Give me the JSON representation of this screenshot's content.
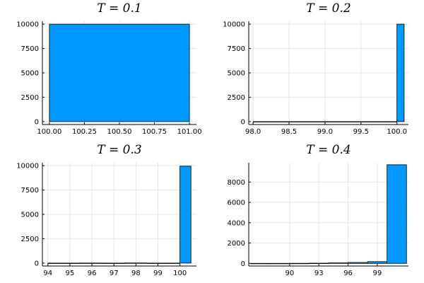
{
  "chart_data": [
    {
      "type": "bar",
      "title": "T = 0.1",
      "xlim": [
        99.95,
        101.05
      ],
      "ylim": [
        -300,
        10300
      ],
      "xticks": [
        100.0,
        100.25,
        100.5,
        100.75,
        101.0
      ],
      "xtick_labels": [
        "100.00",
        "100.25",
        "100.50",
        "100.75",
        "101.00"
      ],
      "yticks": [
        0,
        2500,
        5000,
        7500,
        10000
      ],
      "ytick_labels": [
        "0",
        "2500",
        "5000",
        "7500",
        "10000"
      ],
      "bins": [
        {
          "x0": 100.0,
          "x1": 101.0,
          "value": 10000
        }
      ],
      "color": "#0099ff",
      "grid": true
    },
    {
      "type": "bar",
      "title": "T = 0.2",
      "xlim": [
        97.94,
        100.16
      ],
      "ylim": [
        -300,
        10300
      ],
      "xticks": [
        98.0,
        98.5,
        99.0,
        99.5,
        100.0
      ],
      "xtick_labels": [
        "98.0",
        "98.5",
        "99.0",
        "99.5",
        "100.0"
      ],
      "yticks": [
        0,
        2500,
        5000,
        7500,
        10000
      ],
      "ytick_labels": [
        "0",
        "2500",
        "5000",
        "7500",
        "10000"
      ],
      "bins": [
        {
          "x0": 98.0,
          "x1": 99.9,
          "value": 0
        },
        {
          "x0": 99.9,
          "x1": 100.0,
          "value": 0
        },
        {
          "x0": 100.0,
          "x1": 100.1,
          "value": 10000
        }
      ],
      "color": "#0099ff",
      "grid": true
    },
    {
      "type": "bar",
      "title": "T = 0.3",
      "xlim": [
        93.75,
        100.75
      ],
      "ylim": [
        -300,
        10300
      ],
      "xticks": [
        94,
        95,
        96,
        97,
        98,
        99,
        100
      ],
      "xtick_labels": [
        "94",
        "95",
        "96",
        "97",
        "98",
        "99",
        "100"
      ],
      "yticks": [
        0,
        2500,
        5000,
        7500,
        10000
      ],
      "ytick_labels": [
        "0",
        "2500",
        "5000",
        "7500",
        "10000"
      ],
      "bins": [
        {
          "x0": 94.0,
          "x1": 95.5,
          "value": 0
        },
        {
          "x0": 95.5,
          "x1": 96.5,
          "value": 5
        },
        {
          "x0": 96.5,
          "x1": 97.5,
          "value": 0
        },
        {
          "x0": 97.5,
          "x1": 98.5,
          "value": 15
        },
        {
          "x0": 98.5,
          "x1": 99.5,
          "value": 0
        },
        {
          "x0": 99.5,
          "x1": 100.0,
          "value": 0
        },
        {
          "x0": 100.0,
          "x1": 100.5,
          "value": 9950
        }
      ],
      "color": "#0099ff",
      "grid": true
    },
    {
      "type": "bar",
      "title": "T = 0.4",
      "xlim": [
        85.8,
        102.2
      ],
      "ylim": [
        -260,
        9900
      ],
      "xticks": [
        90,
        93,
        96,
        99
      ],
      "xtick_labels": [
        "90",
        "93",
        "96",
        "99"
      ],
      "yticks": [
        0,
        2000,
        4000,
        6000,
        8000
      ],
      "ytick_labels": [
        "0",
        "2000",
        "4000",
        "6000",
        "8000"
      ],
      "bins": [
        {
          "x0": 86.0,
          "x1": 88.0,
          "value": 0
        },
        {
          "x0": 88.0,
          "x1": 90.0,
          "value": 2
        },
        {
          "x0": 90.0,
          "x1": 92.0,
          "value": 5
        },
        {
          "x0": 92.0,
          "x1": 94.0,
          "value": 20
        },
        {
          "x0": 94.0,
          "x1": 96.0,
          "value": 50
        },
        {
          "x0": 96.0,
          "x1": 98.0,
          "value": 90
        },
        {
          "x0": 98.0,
          "x1": 100.0,
          "value": 170
        },
        {
          "x0": 100.0,
          "x1": 102.0,
          "value": 9700
        }
      ],
      "color": "#0099ff",
      "grid": true
    }
  ]
}
